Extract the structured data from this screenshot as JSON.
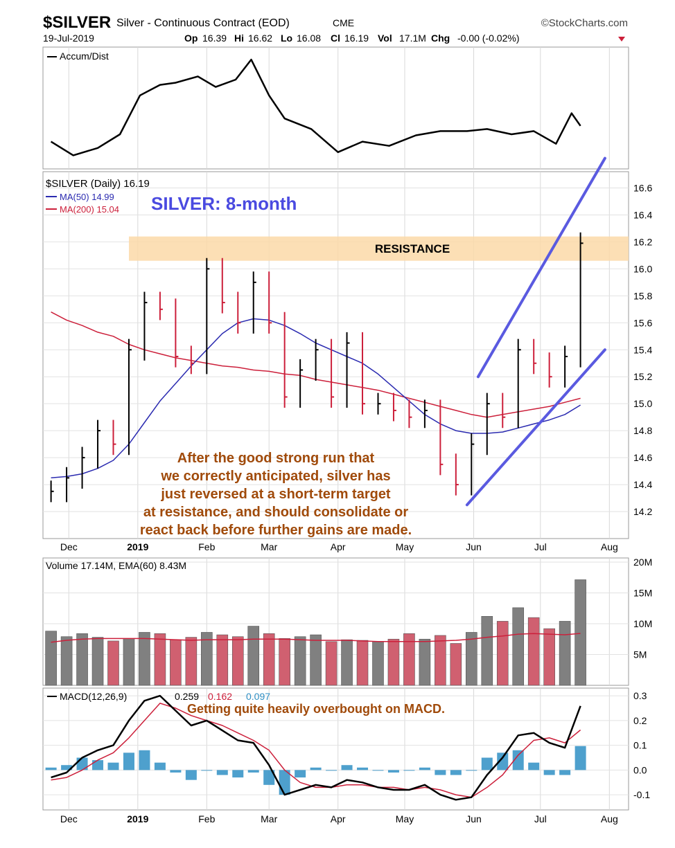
{
  "header": {
    "symbol": "$SILVER",
    "name": "Silver - Continuous Contract (EOD)",
    "exchange": "CME",
    "source": "©StockCharts.com",
    "date": "19-Jul-2019",
    "op_label": "Op",
    "op": "16.39",
    "hi_label": "Hi",
    "hi": "16.62",
    "lo_label": "Lo",
    "lo": "16.08",
    "cl_label": "Cl",
    "cl": "16.19",
    "vol_label": "Vol",
    "vol": "17.1M",
    "chg_label": "Chg",
    "chg": "-0.00 (-0.02%)"
  },
  "colors": {
    "up": "#000000",
    "down": "#cc1f3a",
    "ma50": "#2a2ab0",
    "ma200": "#cc1f3a",
    "channel": "#5a5ae0",
    "resistance": "#fcd9a8",
    "annotation": "#a04a0a",
    "macd_hist": "#2f8fc4",
    "ema": "#cc1f3a",
    "vol_up": "#808080",
    "vol_down": "#d06070"
  },
  "month_labels": [
    "Dec",
    "2019",
    "Feb",
    "Mar",
    "Apr",
    "May",
    "Jun",
    "Jul",
    "Aug"
  ],
  "chart_data": [
    {
      "type": "line",
      "legend": "Accum/Dist",
      "x": [
        "2018-11-23",
        "2018-12-03",
        "2018-12-14",
        "2018-12-24",
        "2019-01-02",
        "2019-01-11",
        "2019-01-18",
        "2019-01-28",
        "2019-02-05",
        "2019-02-14",
        "2019-02-21",
        "2019-03-01",
        "2019-03-08",
        "2019-03-20",
        "2019-04-01",
        "2019-04-12",
        "2019-04-24",
        "2019-05-06",
        "2019-05-17",
        "2019-05-29",
        "2019-06-07",
        "2019-06-18",
        "2019-06-28",
        "2019-07-08",
        "2019-07-15",
        "2019-07-19"
      ],
      "values": [
        0.18,
        0.05,
        0.12,
        0.25,
        0.62,
        0.72,
        0.74,
        0.8,
        0.7,
        0.77,
        0.96,
        0.62,
        0.4,
        0.3,
        0.08,
        0.18,
        0.14,
        0.24,
        0.28,
        0.28,
        0.3,
        0.25,
        0.28,
        0.16,
        0.45,
        0.33
      ],
      "ylim": [
        0,
        1
      ]
    },
    {
      "type": "line",
      "title": "$SILVER (Daily) 16.19",
      "legend_ma50": "MA(50) 14.99",
      "legend_ma200": "MA(200) 15.04",
      "headline": "SILVER: 8-month",
      "resistance_label": "RESISTANCE",
      "resistance_range": [
        16.06,
        16.24
      ],
      "ylim": [
        14.0,
        16.7
      ],
      "yticks": [
        14.2,
        14.4,
        14.6,
        14.8,
        15.0,
        15.2,
        15.4,
        15.6,
        15.8,
        16.0,
        16.2,
        16.4,
        16.6
      ],
      "x": [
        "2018-11-23",
        "2018-11-30",
        "2018-12-07",
        "2018-12-14",
        "2018-12-21",
        "2018-12-28",
        "2019-01-04",
        "2019-01-11",
        "2019-01-18",
        "2019-01-25",
        "2019-02-01",
        "2019-02-08",
        "2019-02-15",
        "2019-02-22",
        "2019-03-01",
        "2019-03-08",
        "2019-03-15",
        "2019-03-22",
        "2019-03-29",
        "2019-04-05",
        "2019-04-12",
        "2019-04-19",
        "2019-04-26",
        "2019-05-03",
        "2019-05-10",
        "2019-05-17",
        "2019-05-24",
        "2019-05-31",
        "2019-06-07",
        "2019-06-14",
        "2019-06-21",
        "2019-06-28",
        "2019-07-05",
        "2019-07-12",
        "2019-07-19"
      ],
      "close": [
        14.35,
        14.45,
        14.6,
        14.8,
        14.7,
        15.4,
        15.75,
        15.7,
        15.35,
        15.3,
        16.0,
        15.75,
        15.6,
        15.9,
        15.6,
        15.05,
        15.25,
        15.4,
        15.05,
        15.45,
        15.0,
        15.0,
        14.95,
        14.9,
        14.95,
        14.55,
        14.4,
        14.7,
        15.0,
        14.9,
        15.4,
        15.3,
        15.2,
        15.35,
        16.19
      ],
      "ma50": [
        14.45,
        14.46,
        14.48,
        14.52,
        14.58,
        14.7,
        14.86,
        15.02,
        15.15,
        15.28,
        15.4,
        15.52,
        15.6,
        15.63,
        15.62,
        15.58,
        15.52,
        15.45,
        15.4,
        15.35,
        15.3,
        15.22,
        15.12,
        15.02,
        14.92,
        14.85,
        14.8,
        14.78,
        14.78,
        14.79,
        14.82,
        14.85,
        14.88,
        14.92,
        14.99
      ],
      "ma200": [
        15.68,
        15.62,
        15.58,
        15.53,
        15.5,
        15.44,
        15.4,
        15.37,
        15.34,
        15.32,
        15.3,
        15.28,
        15.27,
        15.25,
        15.24,
        15.22,
        15.21,
        15.18,
        15.16,
        15.14,
        15.12,
        15.1,
        15.07,
        15.04,
        15.01,
        14.98,
        14.95,
        14.92,
        14.9,
        14.92,
        14.94,
        14.96,
        14.98,
        15.01,
        15.04
      ],
      "channel_lower": {
        "start": [
          "2019-05-29",
          14.25
        ],
        "end": [
          "2019-07-30",
          15.4
        ]
      },
      "channel_upper": {
        "start": [
          "2019-06-03",
          15.2
        ],
        "end": [
          "2019-07-30",
          16.82
        ]
      },
      "annotation": "After the good strong run that we correctly anticipated, silver has just reversed at a short-term target at resistance, and should consolidate or react back before further gains are made."
    },
    {
      "type": "bar",
      "legend": "Volume 17.14M, EMA(60) 8.43M",
      "ylim": [
        0,
        20
      ],
      "yticks": [
        "5M",
        "10M",
        "15M",
        "20M"
      ],
      "x": [
        "2018-11-23",
        "2018-11-30",
        "2018-12-07",
        "2018-12-14",
        "2018-12-21",
        "2018-12-28",
        "2019-01-04",
        "2019-01-11",
        "2019-01-18",
        "2019-01-25",
        "2019-02-01",
        "2019-02-08",
        "2019-02-15",
        "2019-02-22",
        "2019-03-01",
        "2019-03-08",
        "2019-03-15",
        "2019-03-22",
        "2019-03-29",
        "2019-04-05",
        "2019-04-12",
        "2019-04-19",
        "2019-04-26",
        "2019-05-03",
        "2019-05-10",
        "2019-05-17",
        "2019-05-24",
        "2019-05-31",
        "2019-06-07",
        "2019-06-14",
        "2019-06-21",
        "2019-06-28",
        "2019-07-05",
        "2019-07-12",
        "2019-07-19"
      ],
      "values": [
        8.8,
        7.9,
        8.4,
        7.8,
        7.2,
        7.6,
        8.6,
        8.4,
        7.4,
        7.8,
        8.6,
        8.2,
        7.9,
        9.6,
        8.4,
        7.6,
        7.9,
        8.2,
        7.1,
        7.4,
        7.3,
        7.1,
        7.5,
        8.4,
        7.5,
        8.1,
        6.8,
        8.6,
        11.2,
        10.4,
        12.6,
        11.0,
        9.2,
        10.4,
        17.14
      ],
      "ema": [
        7.0,
        7.3,
        7.5,
        7.6,
        7.6,
        7.6,
        7.6,
        7.5,
        7.4,
        7.3,
        7.4,
        7.4,
        7.4,
        7.5,
        7.5,
        7.5,
        7.4,
        7.3,
        7.3,
        7.3,
        7.2,
        7.1,
        7.1,
        7.1,
        7.1,
        7.2,
        7.3,
        7.5,
        7.8,
        8.0,
        8.3,
        8.4,
        8.3,
        8.2,
        8.43
      ]
    },
    {
      "type": "line",
      "legend_prefix": "MACD(12,26,9)",
      "legend_macd": "0.259",
      "legend_signal": "0.162",
      "legend_hist": "0.097",
      "annotation": "Getting quite heavily overbought on MACD.",
      "ylim": [
        -0.15,
        0.32
      ],
      "yticks": [
        "-0.1",
        "0.0",
        "0.1",
        "0.2",
        "0.3"
      ],
      "x": [
        "2018-11-23",
        "2018-11-30",
        "2018-12-07",
        "2018-12-14",
        "2018-12-21",
        "2018-12-28",
        "2019-01-04",
        "2019-01-11",
        "2019-01-18",
        "2019-01-25",
        "2019-02-01",
        "2019-02-08",
        "2019-02-15",
        "2019-02-22",
        "2019-03-01",
        "2019-03-08",
        "2019-03-15",
        "2019-03-22",
        "2019-03-29",
        "2019-04-05",
        "2019-04-12",
        "2019-04-19",
        "2019-04-26",
        "2019-05-03",
        "2019-05-10",
        "2019-05-17",
        "2019-05-24",
        "2019-05-31",
        "2019-06-07",
        "2019-06-14",
        "2019-06-21",
        "2019-06-28",
        "2019-07-05",
        "2019-07-12",
        "2019-07-19"
      ],
      "macd": [
        -0.03,
        -0.01,
        0.05,
        0.08,
        0.1,
        0.2,
        0.28,
        0.3,
        0.24,
        0.18,
        0.2,
        0.16,
        0.12,
        0.11,
        0.02,
        -0.1,
        -0.08,
        -0.06,
        -0.07,
        -0.04,
        -0.05,
        -0.07,
        -0.08,
        -0.08,
        -0.06,
        -0.1,
        -0.12,
        -0.11,
        -0.02,
        0.05,
        0.14,
        0.15,
        0.11,
        0.09,
        0.259
      ],
      "signal": [
        -0.04,
        -0.03,
        0.0,
        0.04,
        0.07,
        0.13,
        0.2,
        0.27,
        0.25,
        0.22,
        0.2,
        0.18,
        0.15,
        0.12,
        0.08,
        0.0,
        -0.05,
        -0.07,
        -0.07,
        -0.06,
        -0.06,
        -0.07,
        -0.07,
        -0.08,
        -0.07,
        -0.08,
        -0.1,
        -0.11,
        -0.07,
        -0.02,
        0.06,
        0.12,
        0.13,
        0.11,
        0.162
      ],
      "hist": [
        0.01,
        0.02,
        0.05,
        0.04,
        0.03,
        0.07,
        0.08,
        0.03,
        -0.01,
        -0.04,
        0.0,
        -0.02,
        -0.03,
        -0.01,
        -0.06,
        -0.1,
        -0.03,
        0.01,
        0.0,
        0.02,
        0.01,
        0.0,
        -0.01,
        0.0,
        0.01,
        -0.02,
        -0.02,
        0.0,
        0.05,
        0.07,
        0.08,
        0.03,
        -0.02,
        -0.02,
        0.097
      ]
    }
  ]
}
